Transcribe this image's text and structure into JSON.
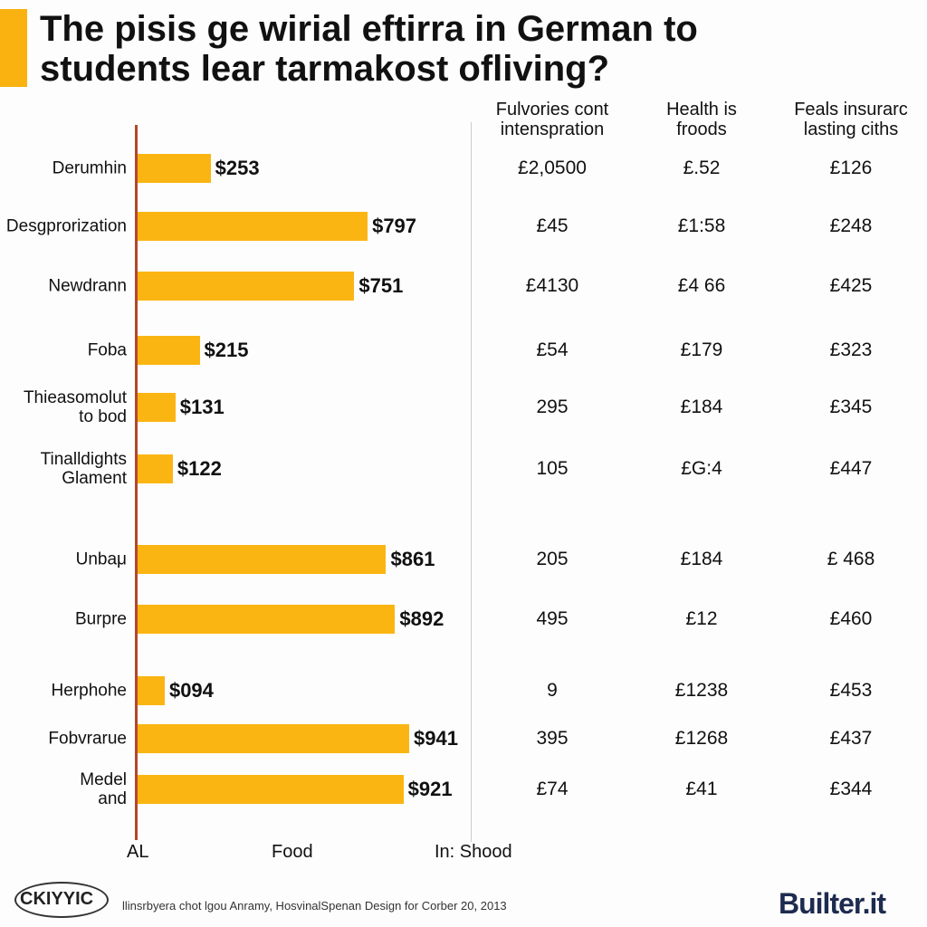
{
  "title": "The pisis ge wirial eftirra in German to\nstudents lear tarmakost ofliving?",
  "chart_data": {
    "type": "bar",
    "orientation": "horizontal",
    "color": "#fbb512",
    "categories": [
      "Derumhin",
      "Desgprorization",
      "Newdrann",
      "Foba",
      "Thieasomolut\nto bod",
      "Tinalldights\nGlament",
      "Unbaμ",
      "Burpre",
      "Herphohe",
      "Fobvrarue",
      "Medel\nand"
    ],
    "values": [
      253,
      797,
      751,
      215,
      131,
      122,
      861,
      892,
      94,
      941,
      921
    ],
    "value_labels": [
      "$253",
      "$797",
      "$751",
      "$215",
      "$131",
      "$122",
      "$861",
      "$892",
      "$094",
      "$941",
      "$921"
    ],
    "axis_labels": [
      "AL",
      "Food",
      "In: Shood"
    ]
  },
  "table": {
    "columns": [
      "Fulvories cont\nintenspration",
      "Health is\nfroods",
      "Feals insurarc\nlasting ciths"
    ],
    "rows": [
      [
        "£2,0500",
        "£.52",
        "£126"
      ],
      [
        "£45",
        "£1:58",
        "£248"
      ],
      [
        "£4130",
        "£4 66",
        "£425"
      ],
      [
        "£54",
        "£179",
        "£323"
      ],
      [
        "295",
        "£184",
        "£345"
      ],
      [
        "105",
        "£G:4",
        "£447"
      ],
      [
        "205",
        "£184",
        "£ 468"
      ],
      [
        "495",
        "£12",
        "£460"
      ],
      [
        "9",
        "£1238",
        "£453"
      ],
      [
        "395",
        "£1268",
        "£437"
      ],
      [
        "£74",
        "£41",
        "£344"
      ]
    ]
  },
  "footer": {
    "logo": "CKIYYIC",
    "caption": "llinsrbyera chot lgou Anramy, HosvinalSpenan Design for Corber 20, 2013",
    "brand": "Builter.it"
  }
}
